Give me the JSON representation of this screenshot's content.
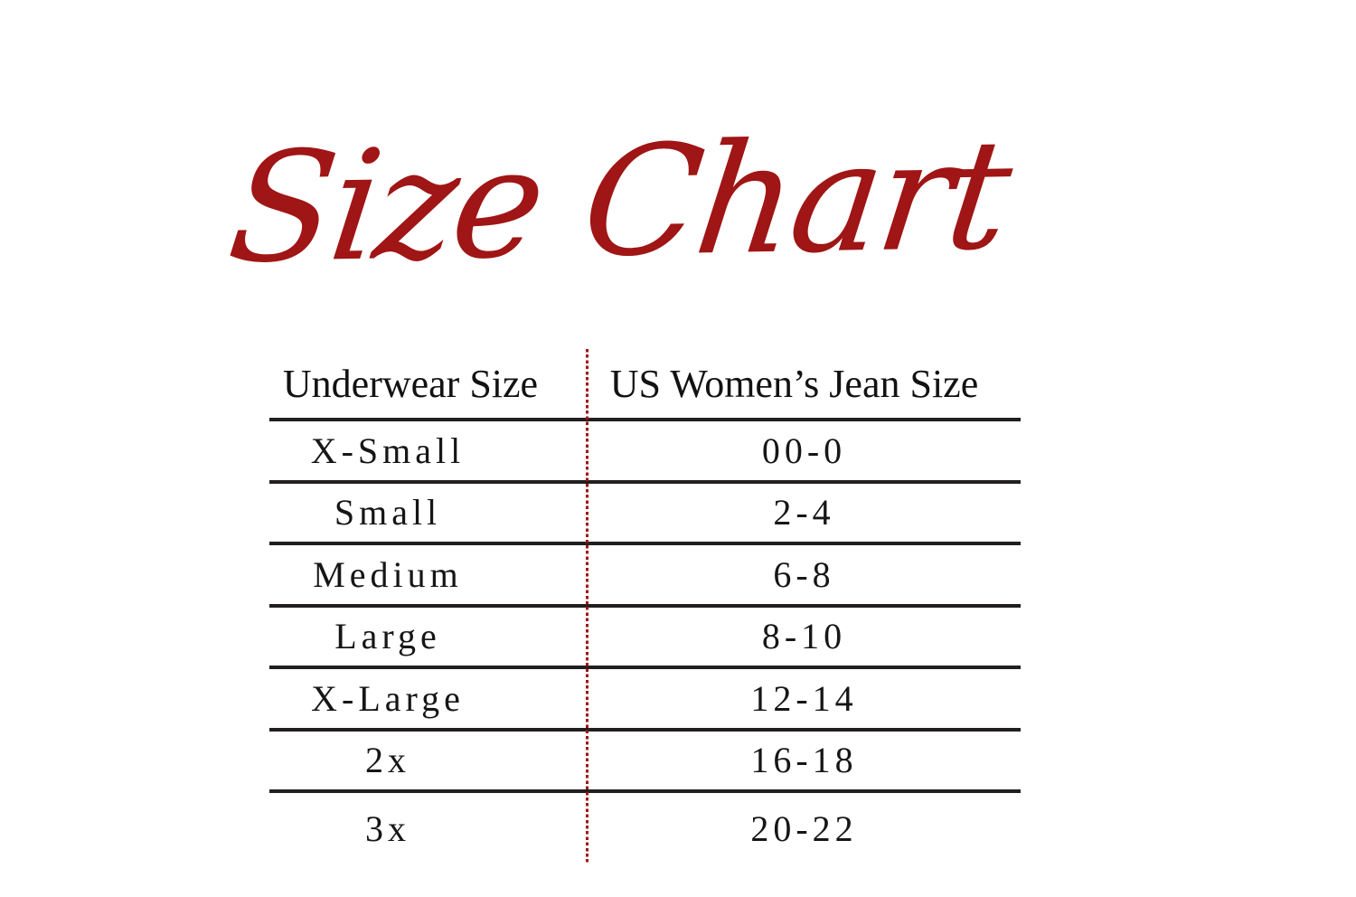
{
  "title": {
    "text": "Size Chart",
    "color": "#A01515"
  },
  "colors": {
    "accent_red": "#A01515",
    "divider_dotted_red": "#A01515",
    "rule_black": "#221F1F",
    "text": "#141414",
    "background": "#FFFFFF"
  },
  "chart_data": {
    "type": "table",
    "title": "Size Chart",
    "columns": [
      "Underwear Size",
      "US Women’s Jean Size"
    ],
    "rows": [
      [
        "X-Small",
        "00-0"
      ],
      [
        "Small",
        "2-4"
      ],
      [
        "Medium",
        "6-8"
      ],
      [
        "Large",
        "8-10"
      ],
      [
        "X-Large",
        "12-14"
      ],
      [
        "2x",
        "16-18"
      ],
      [
        "3x",
        "20-22"
      ]
    ],
    "layout": {
      "column_divider": "vertical dotted red line between the two columns",
      "row_rules": "thin black horizontal rule under header and under each row except the last",
      "grid": "rows-only"
    }
  }
}
